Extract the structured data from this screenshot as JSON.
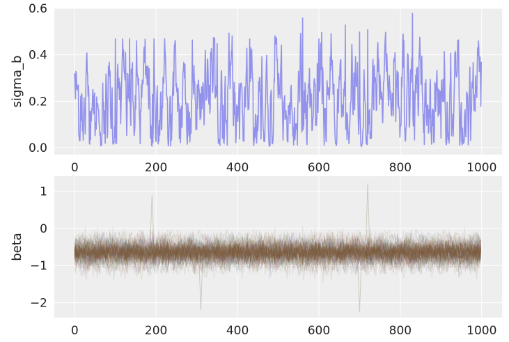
{
  "chart_data": [
    {
      "type": "line",
      "ylabel": "sigma_b",
      "xlabel": "",
      "xlim": [
        -50,
        1050
      ],
      "ylim": [
        -0.03,
        0.6
      ],
      "xticks": [
        0,
        200,
        400,
        600,
        800,
        1000
      ],
      "yticks": [
        0.0,
        0.2,
        0.4,
        0.6
      ],
      "xtick_labels": [
        "0",
        "200",
        "400",
        "600",
        "800",
        "1000"
      ],
      "ytick_labels": [
        "0.0",
        "0.2",
        "0.4",
        "0.6"
      ],
      "grid": true,
      "background": "#eeeeee",
      "series": [
        {
          "color": "#8c8ceb",
          "n_draws": 1000,
          "trace_description": "MCMC trace fluctuating between about 0.0 and 0.58",
          "notable_points": [
            {
              "x": 0,
              "y": 0.32
            },
            {
              "x": 50,
              "y": 0.05
            },
            {
              "x": 100,
              "y": 0.47
            },
            {
              "x": 135,
              "y": 0.47
            },
            {
              "x": 195,
              "y": 0.47
            },
            {
              "x": 260,
              "y": 0.02
            },
            {
              "x": 350,
              "y": 0.45
            },
            {
              "x": 430,
              "y": 0.47
            },
            {
              "x": 480,
              "y": 0.01
            },
            {
              "x": 560,
              "y": 0.56
            },
            {
              "x": 600,
              "y": 0.47
            },
            {
              "x": 665,
              "y": 0.53
            },
            {
              "x": 700,
              "y": 0.5
            },
            {
              "x": 720,
              "y": 0.51
            },
            {
              "x": 830,
              "y": 0.58
            },
            {
              "x": 900,
              "y": 0.04
            },
            {
              "x": 1000,
              "y": 0.37
            }
          ]
        }
      ]
    },
    {
      "type": "line",
      "ylabel": "beta",
      "xlabel": "",
      "xlim": [
        -50,
        1050
      ],
      "ylim": [
        -2.4,
        1.4
      ],
      "xticks": [
        0,
        200,
        400,
        600,
        800,
        1000
      ],
      "yticks": [
        -2,
        -1,
        0,
        1
      ],
      "xtick_labels": [
        "0",
        "200",
        "400",
        "600",
        "800",
        "1000"
      ],
      "ytick_labels": [
        "−2",
        "−1",
        "0",
        "1"
      ],
      "grid": true,
      "background": "#eeeeee",
      "series_summary": {
        "trace_description": "many overlapping semi-transparent parameter traces centered near -0.65",
        "center": -0.65,
        "core_band": [
          -1.0,
          -0.3
        ],
        "extent_band": [
          -2.2,
          1.2
        ],
        "notable_extremes": [
          {
            "x": 190,
            "y": 0.9
          },
          {
            "x": 720,
            "y": 1.2
          },
          {
            "x": 310,
            "y": -2.2
          },
          {
            "x": 700,
            "y": -2.25
          }
        ],
        "colors": [
          "#8a5a3c",
          "#7a6a3a",
          "#4a7a5a",
          "#8a4a4a",
          "#5a5a9a",
          "#9a7a4a",
          "#6a8a6a",
          "#9a5a7a",
          "#7a7a7a",
          "#a0704a"
        ]
      }
    }
  ]
}
